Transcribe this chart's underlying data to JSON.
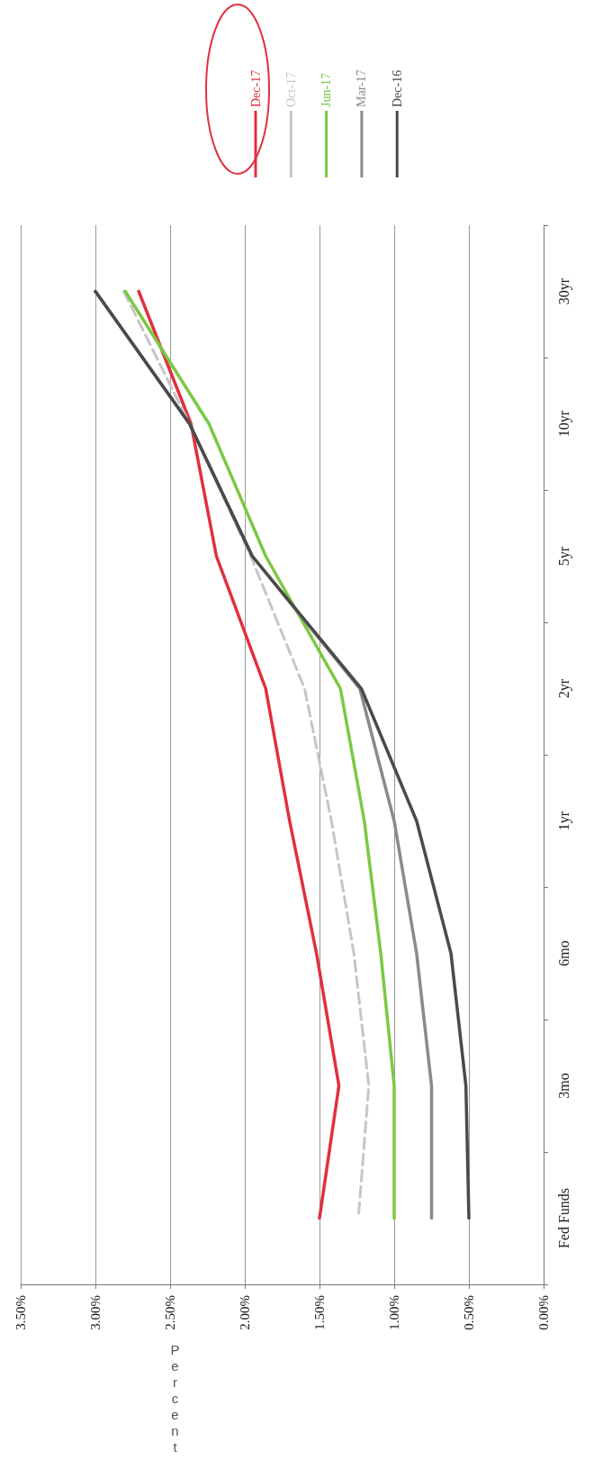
{
  "chart_data": {
    "type": "line",
    "orientation": "horizontal",
    "ylabel": "Percent",
    "categories": [
      "30yr",
      "10yr",
      "5yr",
      "2yr",
      "1yr",
      "6mo",
      "3mo",
      "Fed Funds"
    ],
    "series": [
      {
        "name": "Dec-17",
        "color": "#e0303f",
        "values": [
          2.71,
          2.36,
          2.19,
          1.86,
          1.7,
          1.52,
          1.37,
          1.5
        ]
      },
      {
        "name": "Oct-17",
        "color": "#c8c4cc",
        "line_style": "dashed",
        "values": [
          2.81,
          2.37,
          1.96,
          1.6,
          1.42,
          1.27,
          1.17,
          1.24
        ]
      },
      {
        "name": "Jun-17",
        "color": "#7ac943",
        "values": [
          2.8,
          2.24,
          1.86,
          1.36,
          1.2,
          1.09,
          1.0,
          1.0
        ]
      },
      {
        "name": "Mar-17",
        "color": "#8a8a8a",
        "values": [
          3.0,
          2.37,
          1.95,
          1.23,
          1.0,
          0.85,
          0.75,
          0.75
        ]
      },
      {
        "name": "Dec-16",
        "color": "#4a4a4a",
        "values": [
          3.0,
          2.37,
          1.95,
          1.22,
          0.85,
          0.62,
          0.52,
          0.5
        ]
      }
    ],
    "xlim": [
      3.5,
      0
    ],
    "xticks": [
      {
        "value": 0,
        "label": "0.00%"
      },
      {
        "value": 0.5,
        "label": "0.50%"
      },
      {
        "value": 1,
        "label": "1.00%"
      },
      {
        "value": 1.5,
        "label": "1.50%"
      },
      {
        "value": 2,
        "label": "2.00%"
      },
      {
        "value": 2.5,
        "label": "2.50%"
      },
      {
        "value": 3,
        "label": "3.00%"
      },
      {
        "value": 3.5,
        "label": "3.50%"
      }
    ],
    "grid": "x",
    "legend": "top right",
    "marker": "none",
    "line_style": "solid"
  }
}
